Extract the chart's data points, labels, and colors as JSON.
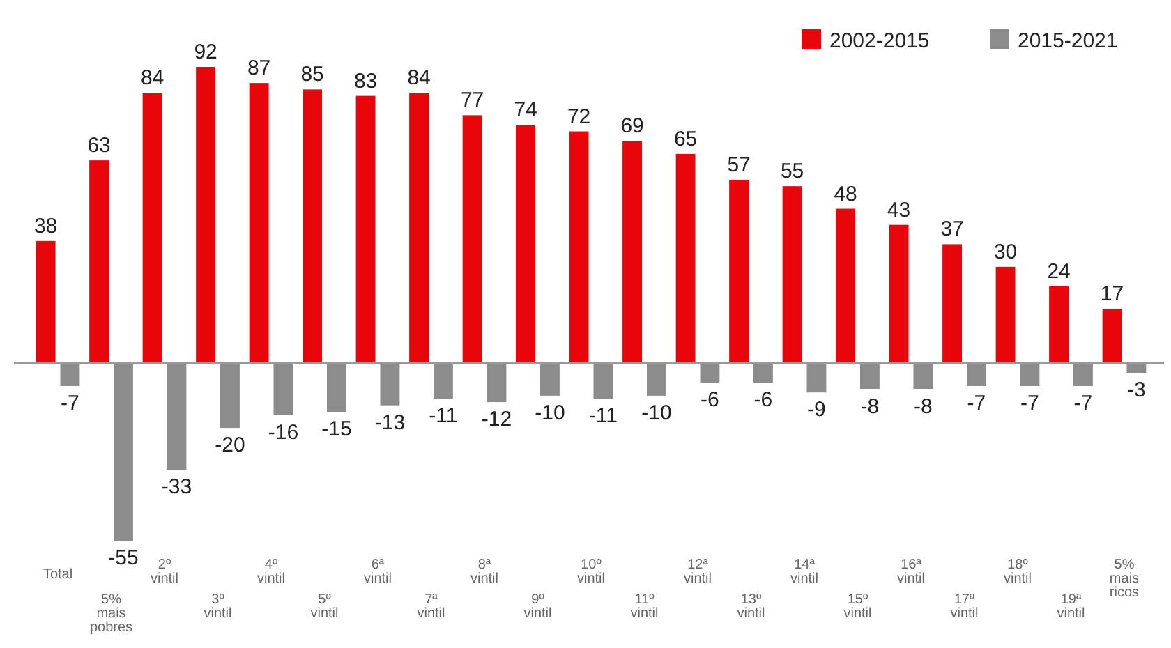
{
  "chart_data": {
    "type": "bar",
    "categories": [
      "Total",
      "5% mais pobres",
      "2º vintil",
      "3º vintil",
      "4º vintil",
      "5º vintil",
      "6ª vintil",
      "7ª vintil",
      "8ª vintil",
      "9º vintil",
      "10º vintil",
      "11º vintil",
      "12ª vintil",
      "13º vintil",
      "14ª vintil",
      "15º vintil",
      "16ª vintil",
      "17ª vintil",
      "18º vintil",
      "19ª vintil",
      "5% mais ricos"
    ],
    "series": [
      {
        "name": "2002-2015",
        "color": "#e8060b",
        "values": [
          38,
          63,
          84,
          92,
          87,
          85,
          83,
          84,
          77,
          74,
          72,
          69,
          65,
          57,
          55,
          48,
          43,
          37,
          30,
          24,
          17
        ]
      },
      {
        "name": "2015-2021",
        "color": "#8c8c8c",
        "values": [
          -7,
          -55,
          -33,
          -20,
          -16,
          -15,
          -13,
          -11,
          -12,
          -10,
          -11,
          -10,
          -6,
          -6,
          -9,
          -8,
          -8,
          -7,
          -7,
          -7,
          -3
        ]
      }
    ],
    "data_labels": true,
    "legend": "top right"
  }
}
